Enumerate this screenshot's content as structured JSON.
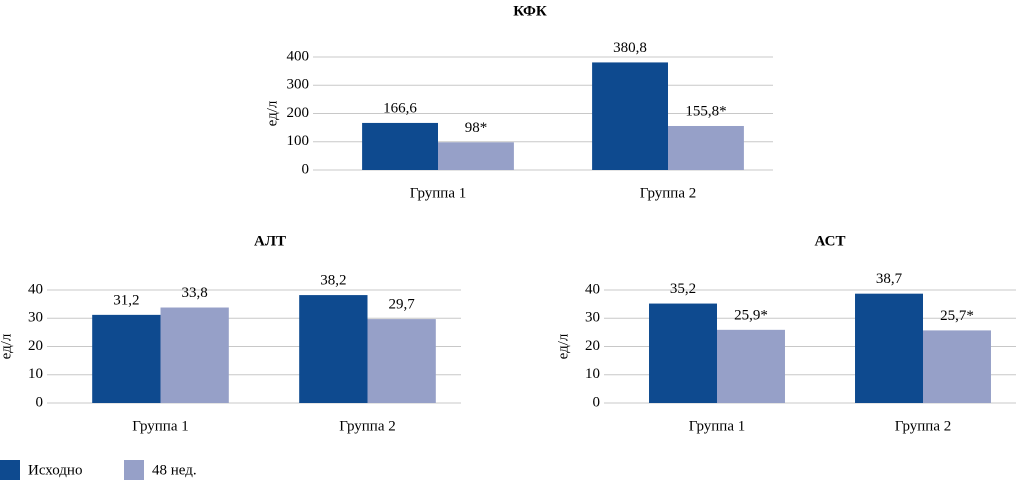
{
  "chart_data": [
    {
      "type": "bar",
      "title": "КФК",
      "ylabel": "ед/л",
      "categories": [
        "Группа 1",
        "Группа 2"
      ],
      "series": [
        {
          "name": "Исходно",
          "color": "#0e4a8f",
          "values": [
            166.6,
            380.8
          ],
          "value_labels": [
            "166,6",
            "380,8"
          ]
        },
        {
          "name": "48 нед.",
          "color": "#96a0c8",
          "values": [
            98,
            155.8
          ],
          "value_labels": [
            "98*",
            "155,8*"
          ]
        }
      ],
      "ylim": [
        0,
        400
      ],
      "yticks": [
        0,
        100,
        200,
        300,
        400
      ],
      "grid": true
    },
    {
      "type": "bar",
      "title": "АЛТ",
      "ylabel": "ед/л",
      "categories": [
        "Группа 1",
        "Группа 2"
      ],
      "series": [
        {
          "name": "Исходно",
          "color": "#0e4a8f",
          "values": [
            31.2,
            38.2
          ],
          "value_labels": [
            "31,2",
            "38,2"
          ]
        },
        {
          "name": "48 нед.",
          "color": "#96a0c8",
          "values": [
            33.8,
            29.7
          ],
          "value_labels": [
            "33,8",
            "29,7"
          ]
        }
      ],
      "ylim": [
        0,
        40
      ],
      "yticks": [
        0,
        10,
        20,
        30,
        40
      ],
      "grid": true
    },
    {
      "type": "bar",
      "title": "АСТ",
      "ylabel": "ед/л",
      "categories": [
        "Группа 1",
        "Группа 2"
      ],
      "series": [
        {
          "name": "Исходно",
          "color": "#0e4a8f",
          "values": [
            35.2,
            38.7
          ],
          "value_labels": [
            "35,2",
            "38,7"
          ]
        },
        {
          "name": "48 нед.",
          "color": "#96a0c8",
          "values": [
            25.9,
            25.7
          ],
          "value_labels": [
            "25,9*",
            "25,7*"
          ]
        }
      ],
      "ylim": [
        0,
        40
      ],
      "yticks": [
        0,
        10,
        20,
        30,
        40
      ],
      "grid": true
    }
  ]
}
